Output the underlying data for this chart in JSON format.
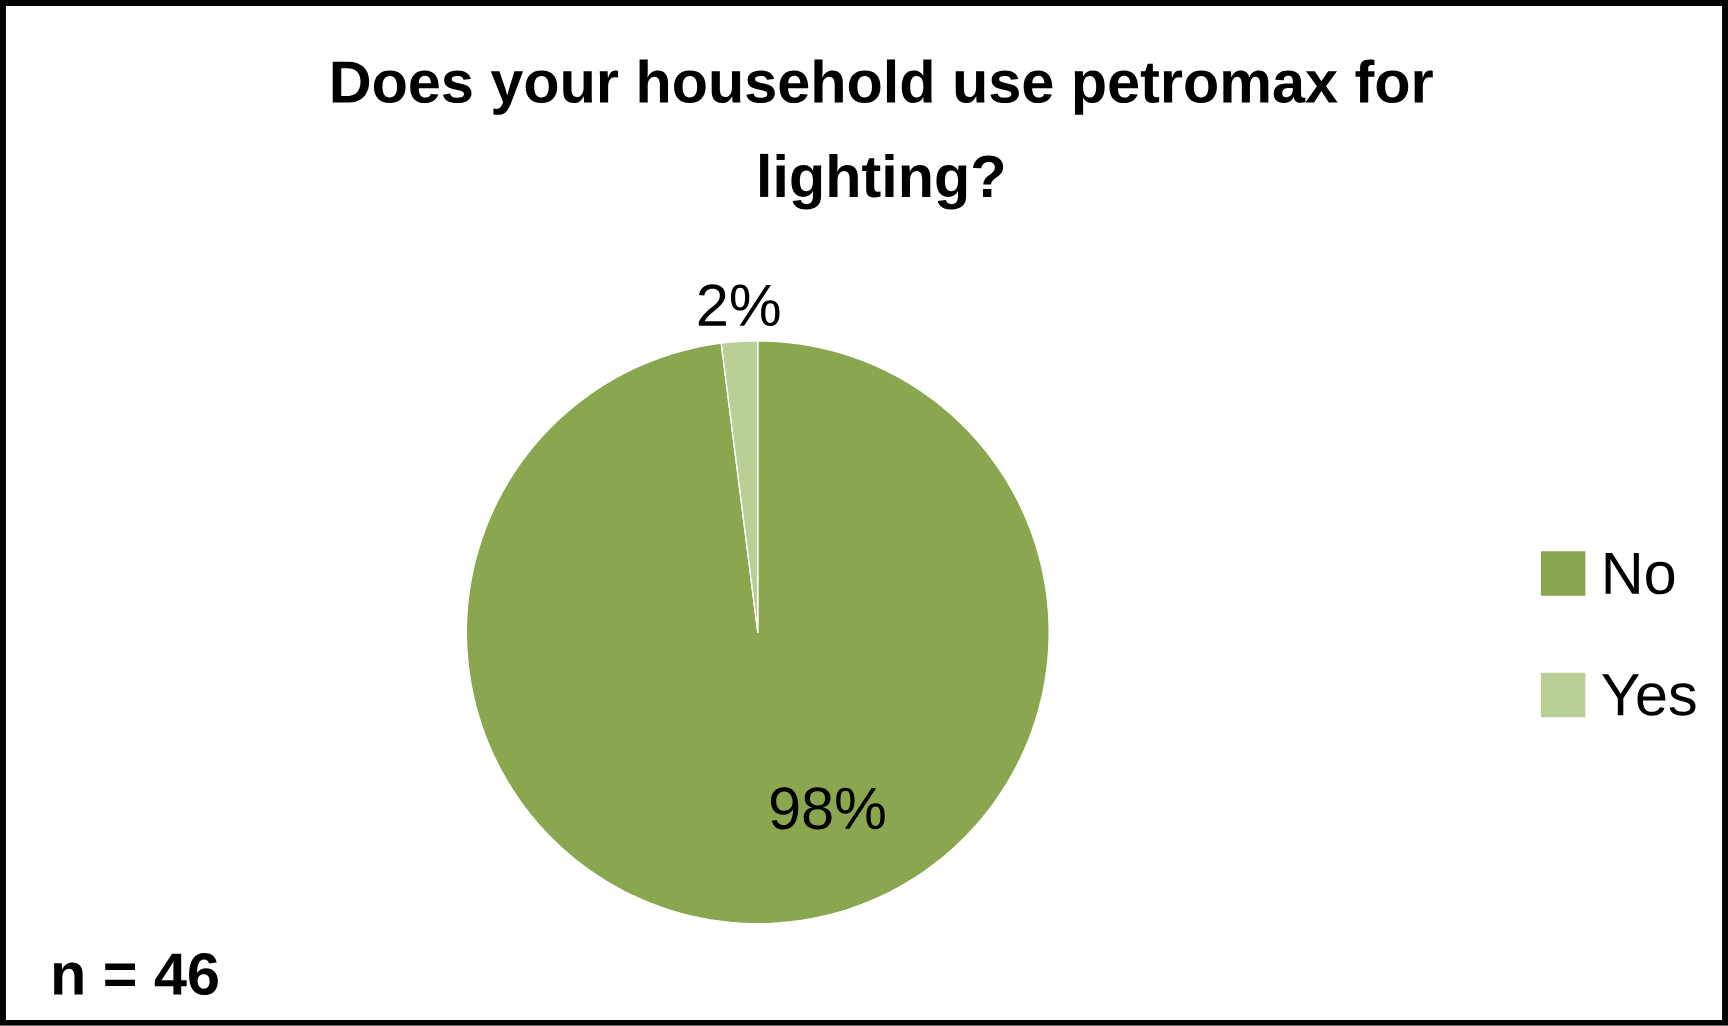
{
  "chart_data": {
    "type": "pie",
    "title": "Does your household use petromax for lighting?",
    "categories": [
      "No",
      "Yes"
    ],
    "values": [
      98,
      2
    ],
    "colors": [
      "#8aa64f",
      "#b9cf96"
    ],
    "value_labels": [
      "98%",
      "2%"
    ],
    "legend": "right",
    "annotations": [
      "n = 46"
    ]
  }
}
